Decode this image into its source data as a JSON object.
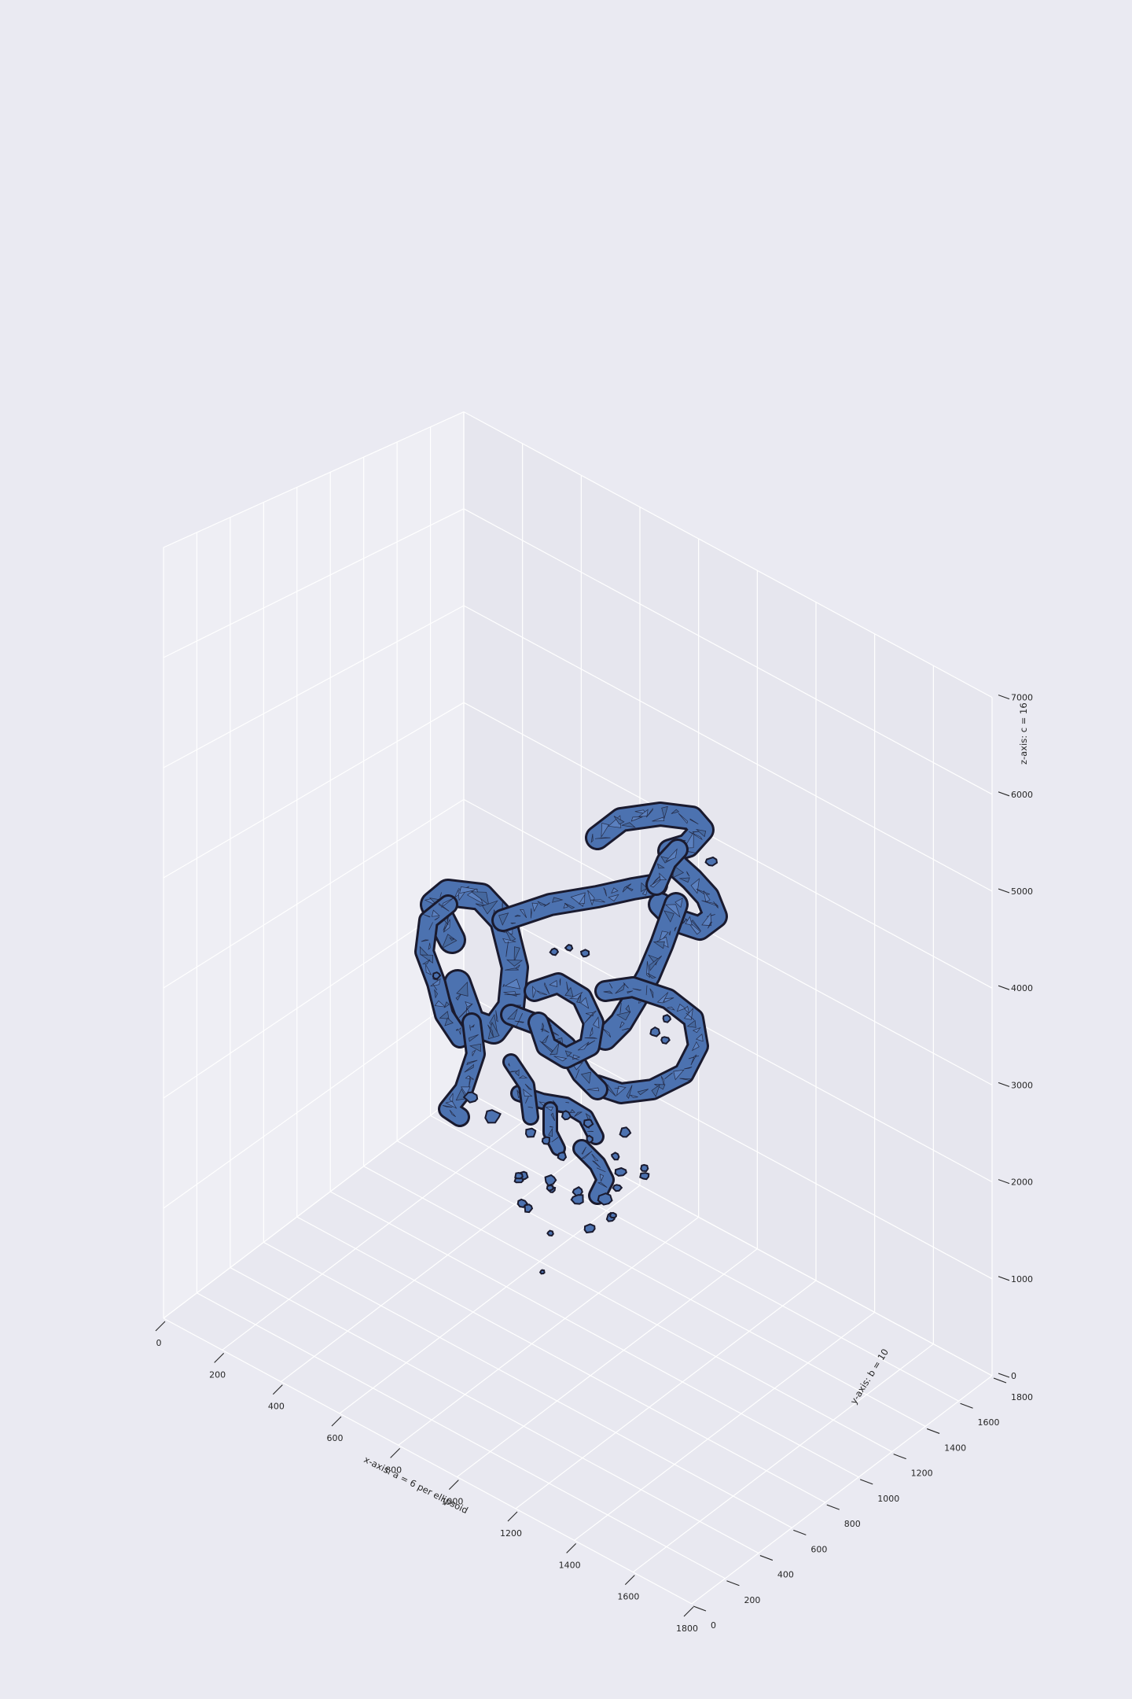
{
  "chart_data": {
    "type": "3d-surface",
    "title": "",
    "axes": {
      "x": {
        "label": "x-axis: a = 6 per ellipsoid",
        "ticks": [
          0,
          200,
          400,
          600,
          800,
          1000,
          1200,
          1400,
          1600,
          1800
        ],
        "lim": [
          0,
          1800
        ]
      },
      "y": {
        "label": "y-axis: b = 10",
        "ticks": [
          0,
          200,
          400,
          600,
          800,
          1000,
          1200,
          1400,
          1600,
          1800
        ],
        "lim": [
          0,
          1800
        ]
      },
      "z": {
        "label": "z-axis: c = 16",
        "ticks": [
          0,
          1000,
          2000,
          3000,
          4000,
          5000,
          6000,
          7000
        ],
        "lim": [
          0,
          7000
        ]
      }
    },
    "surface": {
      "description": "isosurface mesh of connected ellipsoids",
      "face_color": "#4c72b0",
      "edge_color": "#1a1a2e"
    },
    "grid": true,
    "style": "seaborn-darkgrid"
  }
}
